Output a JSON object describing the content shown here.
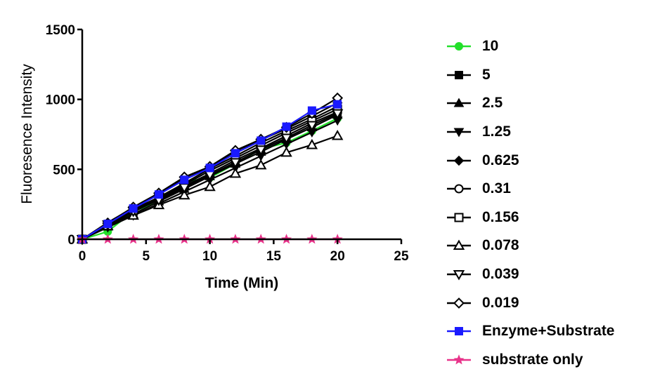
{
  "chart_data": {
    "type": "line",
    "title": "",
    "xlabel": "Time (Min)",
    "ylabel": "Fluoresence Intensity",
    "xlim": [
      0,
      25
    ],
    "ylim": [
      0,
      1500
    ],
    "xticks": [
      "0",
      "5",
      "10",
      "15",
      "20",
      "25"
    ],
    "yticks": [
      "0",
      "500",
      "1000",
      "1500"
    ],
    "grid": false,
    "legend_position": "right",
    "x": [
      0,
      2,
      4,
      6,
      8,
      10,
      12,
      14,
      16,
      18,
      20
    ],
    "series": [
      {
        "name": "10",
        "color": "#22e02a",
        "marker": "circle-filled",
        "values": [
          0,
          55,
          200,
          265,
          410,
          440,
          540,
          645,
          690,
          775,
          865
        ]
      },
      {
        "name": "5",
        "color": "#000000",
        "marker": "square-filled",
        "values": [
          0,
          95,
          195,
          285,
          380,
          470,
          565,
          650,
          740,
          830,
          910
        ]
      },
      {
        "name": "2.5",
        "color": "#000000",
        "marker": "triangle-up-filled",
        "values": [
          0,
          90,
          180,
          270,
          360,
          450,
          540,
          625,
          715,
          800,
          890
        ]
      },
      {
        "name": "1.25",
        "color": "#000000",
        "marker": "triangle-down-filled",
        "values": [
          0,
          85,
          170,
          255,
          340,
          425,
          510,
          595,
          680,
          765,
          850
        ]
      },
      {
        "name": "0.625",
        "color": "#000000",
        "marker": "diamond-filled",
        "values": [
          0,
          120,
          225,
          320,
          440,
          515,
          630,
          710,
          790,
          880,
          975
        ]
      },
      {
        "name": "0.31",
        "color": "#000000",
        "marker": "circle-open",
        "values": [
          0,
          110,
          215,
          300,
          400,
          505,
          595,
          690,
          775,
          860,
          950
        ]
      },
      {
        "name": "0.156",
        "color": "#000000",
        "marker": "square-open",
        "values": [
          0,
          100,
          205,
          295,
          390,
          490,
          580,
          670,
          760,
          845,
          930
        ]
      },
      {
        "name": "0.078",
        "color": "#000000",
        "marker": "triangle-up-open",
        "values": [
          0,
          95,
          170,
          245,
          315,
          375,
          470,
          530,
          620,
          675,
          740
        ]
      },
      {
        "name": "0.039",
        "color": "#000000",
        "marker": "triangle-down-open",
        "values": [
          0,
          105,
          200,
          280,
          370,
          460,
          550,
          640,
          725,
          815,
          900
        ]
      },
      {
        "name": "0.019",
        "color": "#000000",
        "marker": "diamond-open",
        "values": [
          0,
          115,
          230,
          330,
          445,
          520,
          635,
          715,
          800,
          900,
          1010
        ]
      },
      {
        "name": "Enzyme+Substrate",
        "color": "#1a1aff",
        "marker": "square-filled",
        "values": [
          0,
          110,
          220,
          320,
          425,
          510,
          615,
          705,
          805,
          920,
          965
        ]
      },
      {
        "name": "substrate only",
        "color": "#e8338a",
        "marker": "star-filled",
        "values": [
          0,
          0,
          0,
          0,
          0,
          0,
          0,
          0,
          0,
          0,
          0
        ]
      }
    ]
  }
}
